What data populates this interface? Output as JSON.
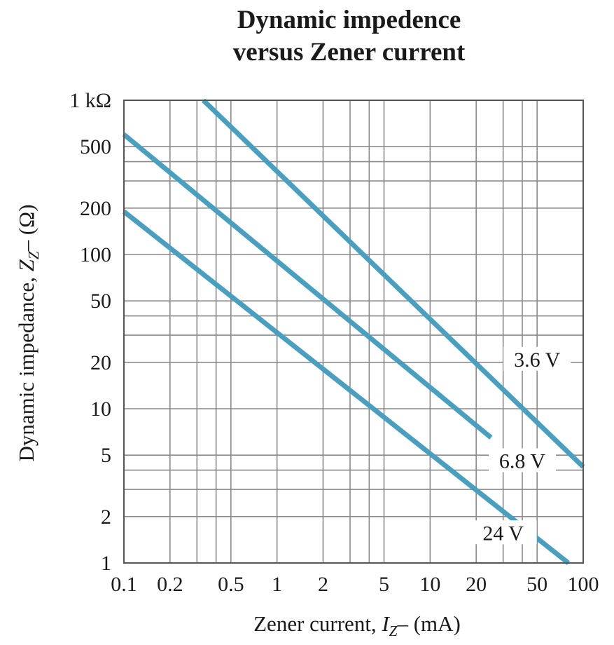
{
  "chart_data": {
    "type": "line",
    "title": [
      "Dynamic impedence",
      "versus Zener current"
    ],
    "xlabel": {
      "prefix": "Zener current, ",
      "var": "I",
      "sub": "Z",
      "suffix": "– (mA)"
    },
    "ylabel": {
      "prefix": "Dynamic impedance, ",
      "var": "Z",
      "sub": "Z",
      "suffix": "– (Ω)"
    },
    "x_scale": "log",
    "y_scale": "log",
    "xlim": [
      0.1,
      100
    ],
    "ylim": [
      1,
      1000
    ],
    "x_ticks": [
      {
        "value": 0.1,
        "label": "0.1"
      },
      {
        "value": 0.2,
        "label": "0.2"
      },
      {
        "value": 0.5,
        "label": "0.5"
      },
      {
        "value": 1,
        "label": "1"
      },
      {
        "value": 2,
        "label": "2"
      },
      {
        "value": 5,
        "label": "5"
      },
      {
        "value": 10,
        "label": "10"
      },
      {
        "value": 20,
        "label": "20"
      },
      {
        "value": 50,
        "label": "50"
      },
      {
        "value": 100,
        "label": "100"
      }
    ],
    "y_ticks": [
      {
        "value": 1,
        "label": "1"
      },
      {
        "value": 2,
        "label": "2"
      },
      {
        "value": 5,
        "label": "5"
      },
      {
        "value": 10,
        "label": "10"
      },
      {
        "value": 20,
        "label": "20"
      },
      {
        "value": 50,
        "label": "50"
      },
      {
        "value": 100,
        "label": "100"
      },
      {
        "value": 200,
        "label": "200"
      },
      {
        "value": 500,
        "label": "500"
      },
      {
        "value": 1000,
        "label": "1 kΩ"
      }
    ],
    "x_grid": [
      0.1,
      0.2,
      0.3,
      0.4,
      0.5,
      1,
      2,
      3,
      4,
      5,
      10,
      20,
      30,
      40,
      50,
      100
    ],
    "y_grid": [
      1,
      2,
      3,
      4,
      5,
      10,
      20,
      30,
      40,
      50,
      100,
      200,
      300,
      400,
      500,
      1000
    ],
    "grid": true,
    "line_color": "#4a9fbf",
    "grid_color": "#8a8a8a",
    "series": [
      {
        "name": "3.6 V",
        "x": [
          0.33,
          100
        ],
        "y": [
          1000,
          4.2
        ],
        "label_at": {
          "x": 50,
          "y": 20
        }
      },
      {
        "name": "6.8 V",
        "x": [
          0.1,
          25
        ],
        "y": [
          600,
          6.5
        ],
        "label_at": {
          "x": 40,
          "y": 4.4
        }
      },
      {
        "name": "24 V",
        "x": [
          0.1,
          80
        ],
        "y": [
          190,
          1
        ],
        "label_at": {
          "x": 30,
          "y": 1.5
        }
      }
    ]
  }
}
